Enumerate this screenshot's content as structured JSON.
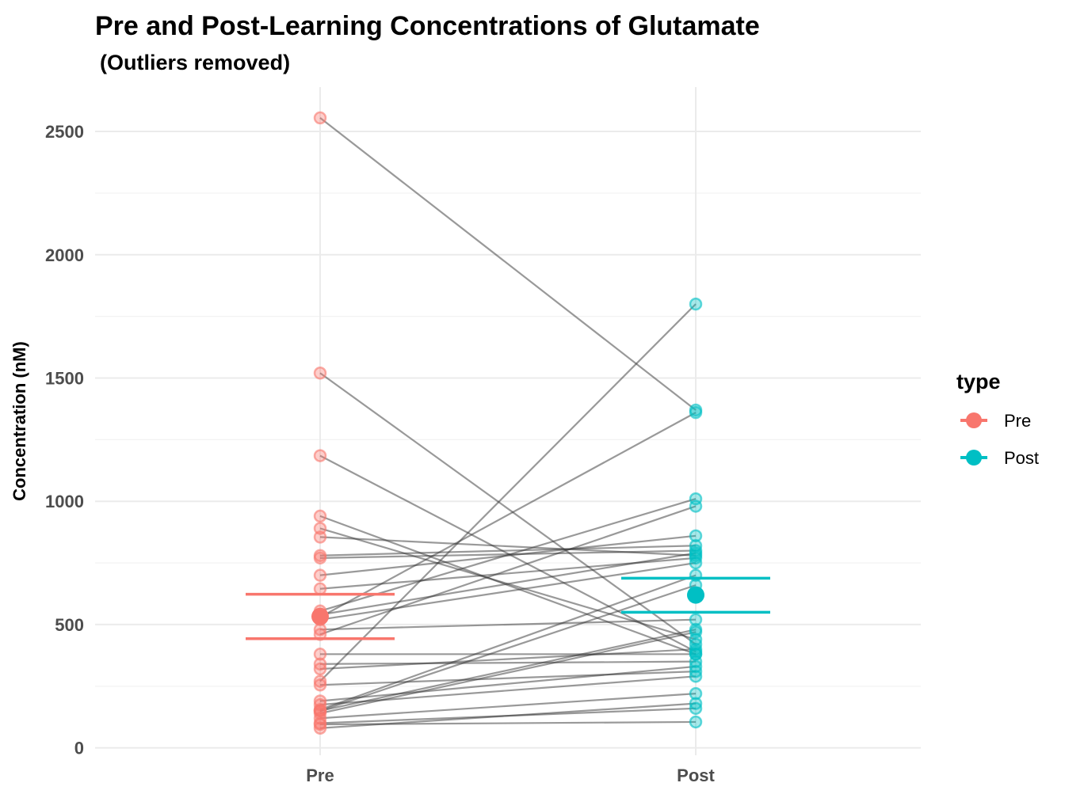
{
  "chart_data": {
    "type": "scatter",
    "title": "Pre and Post-Learning Concentrations of Glutamate",
    "subtitle": "(Outliers removed)",
    "xlabel": "",
    "ylabel": "Concentration (nM)",
    "categories": [
      "Pre",
      "Post"
    ],
    "ylim": [
      -30,
      2680
    ],
    "yticks": [
      0,
      500,
      1000,
      1500,
      2000,
      2500
    ],
    "grid": true,
    "legend": {
      "title": "type",
      "placement": "right",
      "entries": [
        {
          "name": "Pre",
          "color": "#F8766D"
        },
        {
          "name": "Post",
          "color": "#00BFC4"
        }
      ]
    },
    "colors": {
      "pre": "#F8766D",
      "post": "#00BFC4",
      "lines": "#333333"
    },
    "pairs": [
      [
        2555,
        1370
      ],
      [
        1520,
        420
      ],
      [
        1185,
        390
      ],
      [
        940,
        380
      ],
      [
        890,
        440
      ],
      [
        855,
        780
      ],
      [
        780,
        820
      ],
      [
        770,
        800
      ],
      [
        700,
        860
      ],
      [
        645,
        770
      ],
      [
        555,
        1010
      ],
      [
        540,
        790
      ],
      [
        530,
        1360
      ],
      [
        520,
        750
      ],
      [
        480,
        520
      ],
      [
        460,
        980
      ],
      [
        380,
        380
      ],
      [
        340,
        350
      ],
      [
        320,
        400
      ],
      [
        270,
        1800
      ],
      [
        255,
        310
      ],
      [
        190,
        330
      ],
      [
        175,
        290
      ],
      [
        155,
        700
      ],
      [
        150,
        660
      ],
      [
        150,
        480
      ],
      [
        140,
        470
      ],
      [
        120,
        220
      ],
      [
        100,
        160
      ],
      [
        95,
        105
      ],
      [
        80,
        180
      ]
    ],
    "summary": {
      "pre": {
        "mean": 533,
        "ci": [
          443,
          623
        ]
      },
      "post": {
        "mean": 620,
        "ci": [
          550,
          688
        ]
      }
    }
  }
}
